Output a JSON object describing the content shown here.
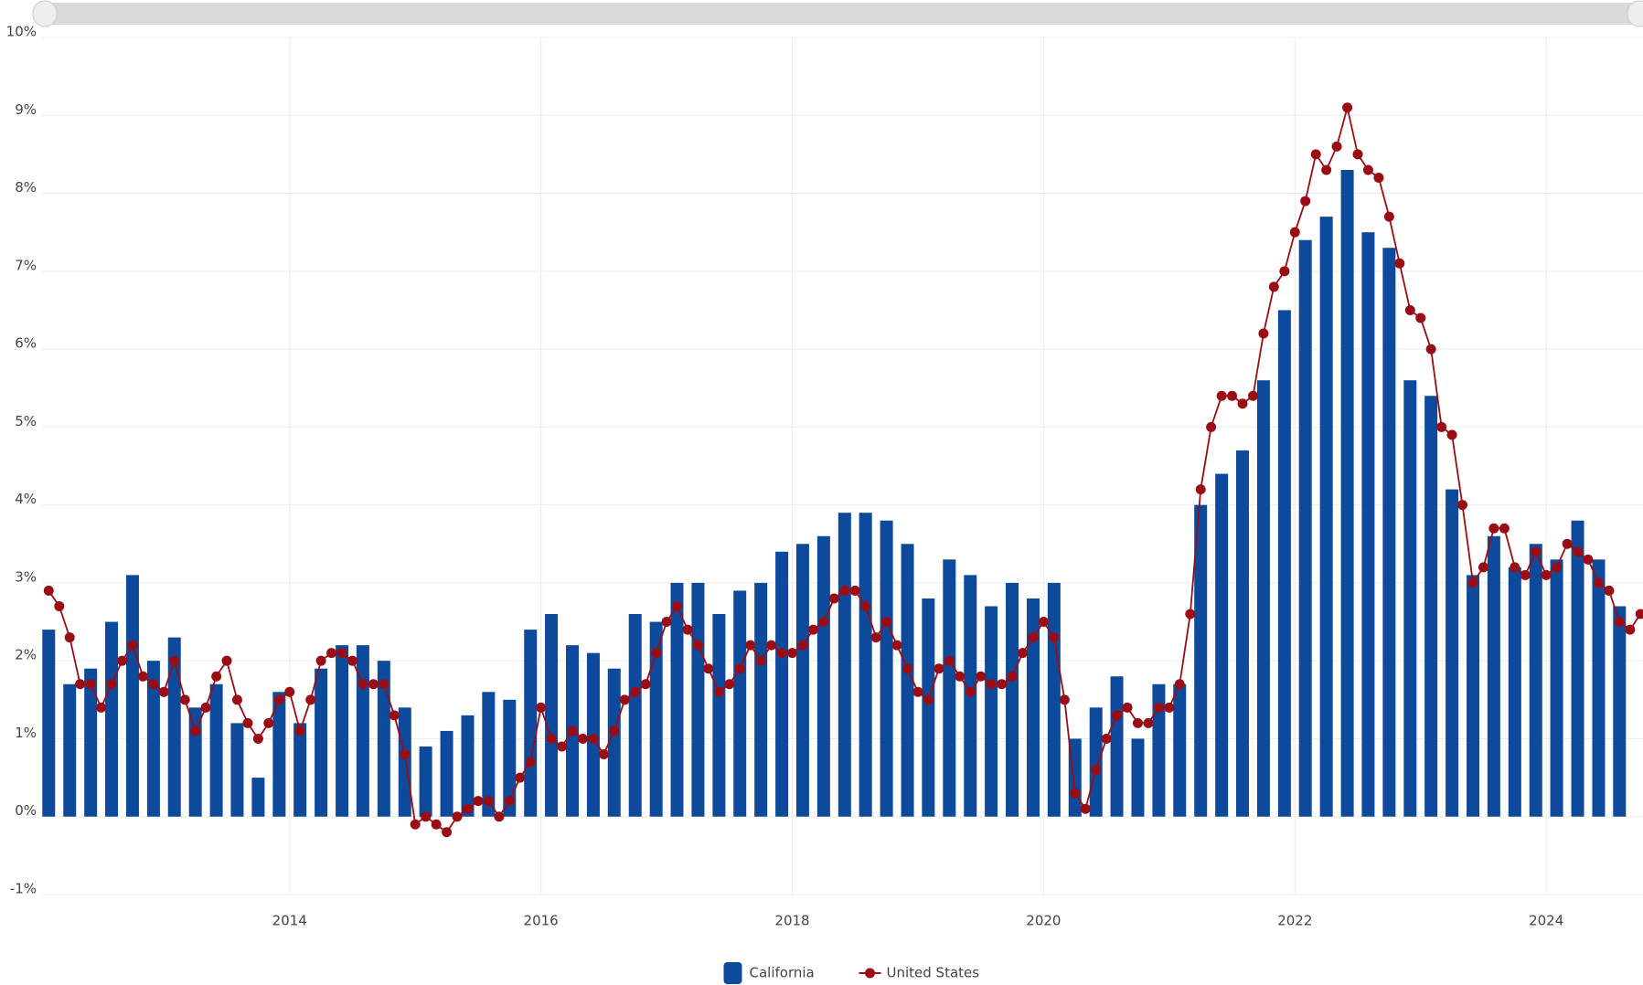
{
  "chart_data": {
    "type": "bar",
    "xlim": [
      2012.03,
      2024.77
    ],
    "xticks": [
      2014,
      2016,
      2018,
      2020,
      2022,
      2024
    ],
    "ylim": [
      -1,
      10
    ],
    "yticks": [
      {
        "value": -1,
        "label": "-1%"
      },
      {
        "value": 0,
        "label": "0%"
      },
      {
        "value": 1,
        "label": "1%"
      },
      {
        "value": 2,
        "label": "2%"
      },
      {
        "value": 3,
        "label": "3%"
      },
      {
        "value": 4,
        "label": "4%"
      },
      {
        "value": 5,
        "label": "5%"
      },
      {
        "value": 6,
        "label": "6%"
      },
      {
        "value": 7,
        "label": "7%"
      },
      {
        "value": 8,
        "label": "8%"
      },
      {
        "value": 9,
        "label": "9%"
      },
      {
        "value": 10,
        "label": "10%"
      }
    ],
    "grid": true,
    "legend": "bottom",
    "series": [
      {
        "name": "California",
        "type": "bar",
        "color": "#0d4a9c",
        "x": [
          2012.083,
          2012.25,
          2012.417,
          2012.583,
          2012.75,
          2012.917,
          2013.083,
          2013.25,
          2013.417,
          2013.583,
          2013.75,
          2013.917,
          2014.083,
          2014.25,
          2014.417,
          2014.583,
          2014.75,
          2014.917,
          2015.083,
          2015.25,
          2015.417,
          2015.583,
          2015.75,
          2015.917,
          2016.083,
          2016.25,
          2016.417,
          2016.583,
          2016.75,
          2016.917,
          2017.083,
          2017.25,
          2017.417,
          2017.583,
          2017.75,
          2017.917,
          2018.083,
          2018.25,
          2018.417,
          2018.583,
          2018.75,
          2018.917,
          2019.083,
          2019.25,
          2019.417,
          2019.583,
          2019.75,
          2019.917,
          2020.083,
          2020.25,
          2020.417,
          2020.583,
          2020.75,
          2020.917,
          2021.083,
          2021.25,
          2021.417,
          2021.583,
          2021.75,
          2021.917,
          2022.083,
          2022.25,
          2022.417,
          2022.583,
          2022.75,
          2022.917,
          2023.083,
          2023.25,
          2023.417,
          2023.583,
          2023.75,
          2023.917,
          2024.083,
          2024.25,
          2024.417,
          2024.583
        ],
        "values": [
          2.4,
          1.7,
          1.9,
          2.5,
          3.1,
          2.0,
          2.3,
          1.4,
          1.7,
          1.2,
          0.5,
          1.6,
          1.2,
          1.9,
          2.2,
          2.2,
          2.0,
          1.4,
          0.9,
          1.1,
          1.3,
          1.6,
          1.5,
          2.4,
          2.6,
          2.2,
          2.1,
          1.9,
          2.6,
          2.5,
          3.0,
          3.0,
          2.6,
          2.9,
          3.0,
          3.4,
          3.5,
          3.6,
          3.9,
          3.9,
          3.8,
          3.5,
          2.8,
          3.3,
          3.1,
          2.7,
          3.0,
          2.8,
          3.0,
          1.0,
          1.4,
          1.8,
          1.0,
          1.7,
          1.7,
          4.0,
          4.4,
          4.7,
          5.6,
          6.5,
          7.4,
          7.7,
          8.3,
          7.5,
          7.3,
          5.6,
          5.4,
          4.2,
          3.1,
          3.6,
          3.2,
          3.5,
          3.3,
          3.8,
          3.3,
          2.7
        ]
      },
      {
        "name": "United States",
        "type": "line",
        "color": "#9b0d14",
        "x": [
          2012.083,
          2012.167,
          2012.25,
          2012.333,
          2012.417,
          2012.5,
          2012.583,
          2012.667,
          2012.75,
          2012.833,
          2012.917,
          2013.0,
          2013.083,
          2013.167,
          2013.25,
          2013.333,
          2013.417,
          2013.5,
          2013.583,
          2013.667,
          2013.75,
          2013.833,
          2013.917,
          2014.0,
          2014.083,
          2014.167,
          2014.25,
          2014.333,
          2014.417,
          2014.5,
          2014.583,
          2014.667,
          2014.75,
          2014.833,
          2014.917,
          2015.0,
          2015.083,
          2015.167,
          2015.25,
          2015.333,
          2015.417,
          2015.5,
          2015.583,
          2015.667,
          2015.75,
          2015.833,
          2015.917,
          2016.0,
          2016.083,
          2016.167,
          2016.25,
          2016.333,
          2016.417,
          2016.5,
          2016.583,
          2016.667,
          2016.75,
          2016.833,
          2016.917,
          2017.0,
          2017.083,
          2017.167,
          2017.25,
          2017.333,
          2017.417,
          2017.5,
          2017.583,
          2017.667,
          2017.75,
          2017.833,
          2017.917,
          2018.0,
          2018.083,
          2018.167,
          2018.25,
          2018.333,
          2018.417,
          2018.5,
          2018.583,
          2018.667,
          2018.75,
          2018.833,
          2018.917,
          2019.0,
          2019.083,
          2019.167,
          2019.25,
          2019.333,
          2019.417,
          2019.5,
          2019.583,
          2019.667,
          2019.75,
          2019.833,
          2019.917,
          2020.0,
          2020.083,
          2020.167,
          2020.25,
          2020.333,
          2020.417,
          2020.5,
          2020.583,
          2020.667,
          2020.75,
          2020.833,
          2020.917,
          2021.0,
          2021.083,
          2021.167,
          2021.25,
          2021.333,
          2021.417,
          2021.5,
          2021.583,
          2021.667,
          2021.75,
          2021.833,
          2021.917,
          2022.0,
          2022.083,
          2022.167,
          2022.25,
          2022.333,
          2022.417,
          2022.5,
          2022.583,
          2022.667,
          2022.75,
          2022.833,
          2022.917,
          2023.0,
          2023.083,
          2023.167,
          2023.25,
          2023.333,
          2023.417,
          2023.5,
          2023.583,
          2023.667,
          2023.75,
          2023.833,
          2023.917,
          2024.0,
          2024.083,
          2024.167,
          2024.25,
          2024.333,
          2024.417,
          2024.5,
          2024.583,
          2024.667,
          2024.75
        ],
        "values": [
          2.9,
          2.7,
          2.3,
          1.7,
          1.7,
          1.4,
          1.7,
          2.0,
          2.2,
          1.8,
          1.7,
          1.6,
          2.0,
          1.5,
          1.1,
          1.4,
          1.8,
          2.0,
          1.5,
          1.2,
          1.0,
          1.2,
          1.5,
          1.6,
          1.1,
          1.5,
          2.0,
          2.1,
          2.1,
          2.0,
          1.7,
          1.7,
          1.7,
          1.3,
          0.8,
          -0.1,
          0.0,
          -0.1,
          -0.2,
          0.0,
          0.1,
          0.2,
          0.2,
          0.0,
          0.2,
          0.5,
          0.7,
          1.4,
          1.0,
          0.9,
          1.1,
          1.0,
          1.0,
          0.8,
          1.1,
          1.5,
          1.6,
          1.7,
          2.1,
          2.5,
          2.7,
          2.4,
          2.2,
          1.9,
          1.6,
          1.7,
          1.9,
          2.2,
          2.0,
          2.2,
          2.1,
          2.1,
          2.2,
          2.4,
          2.5,
          2.8,
          2.9,
          2.9,
          2.7,
          2.3,
          2.5,
          2.2,
          1.9,
          1.6,
          1.5,
          1.9,
          2.0,
          1.8,
          1.6,
          1.8,
          1.7,
          1.7,
          1.8,
          2.1,
          2.3,
          2.5,
          2.3,
          1.5,
          0.3,
          0.1,
          0.6,
          1.0,
          1.3,
          1.4,
          1.2,
          1.2,
          1.4,
          1.4,
          1.7,
          2.6,
          4.2,
          5.0,
          5.4,
          5.4,
          5.3,
          5.4,
          6.2,
          6.8,
          7.0,
          7.5,
          7.9,
          8.5,
          8.3,
          8.6,
          9.1,
          8.5,
          8.3,
          8.2,
          7.7,
          7.1,
          6.5,
          6.4,
          6.0,
          5.0,
          4.9,
          4.0,
          3.0,
          3.2,
          3.7,
          3.7,
          3.2,
          3.1,
          3.4,
          3.1,
          3.2,
          3.5,
          3.4,
          3.3,
          3.0,
          2.9,
          2.5,
          2.4,
          2.6
        ]
      }
    ]
  }
}
